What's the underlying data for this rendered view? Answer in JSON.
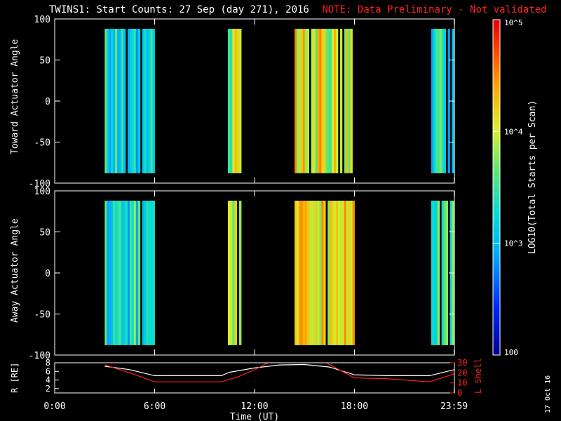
{
  "title": "TWINS1: Start Counts: 27 Sep (day 271), 2016",
  "note": "NOTE: Data Preliminary - Not validated",
  "date_stamp": "17 Oct 16",
  "colorbar": {
    "label": "LOG10(Total Starts per Scan)",
    "tick_labels": [
      "10^5",
      "10^4",
      "10^3",
      "100"
    ],
    "range": [
      100,
      100000
    ],
    "scale": "log"
  },
  "chart_data": [
    {
      "type": "heatmap",
      "name": "toward",
      "ylabel": "Toward Actuator Angle",
      "ylim": [
        -100,
        100
      ],
      "yticks": [
        100,
        50,
        0,
        -50,
        -100
      ],
      "xlim": [
        0,
        24
      ],
      "x_tick_labels": [],
      "angle_range": [
        -88,
        88
      ],
      "blocks": [
        {
          "start": 3.0,
          "end": 6.0,
          "level": 0.42
        },
        {
          "start": 10.4,
          "end": 11.2,
          "level": 0.62
        },
        {
          "start": 14.4,
          "end": 18.0,
          "level": 0.68
        },
        {
          "start": 22.6,
          "end": 23.98,
          "level": 0.45
        }
      ]
    },
    {
      "type": "heatmap",
      "name": "away",
      "ylabel": "Away Actuator Angle",
      "ylim": [
        -100,
        100
      ],
      "yticks": [
        100,
        50,
        0,
        -50,
        -100
      ],
      "xlim": [
        0,
        24
      ],
      "x_tick_labels": [],
      "angle_range": [
        -88,
        88
      ],
      "blocks": [
        {
          "start": 3.0,
          "end": 6.0,
          "level": 0.45
        },
        {
          "start": 10.4,
          "end": 11.2,
          "level": 0.7
        },
        {
          "start": 14.4,
          "end": 18.0,
          "level": 0.72
        },
        {
          "start": 22.6,
          "end": 23.98,
          "level": 0.55
        }
      ]
    },
    {
      "type": "line",
      "name": "orbit",
      "xlabel": "Time (UT)",
      "ylabel_left": "R [RE]",
      "ylabel_right": "L Shell",
      "ylim_left": [
        1,
        8
      ],
      "ylim_right": [
        0,
        30
      ],
      "yticks_left": [
        8,
        6,
        4,
        2
      ],
      "yticks_right": [
        30,
        20,
        10,
        0
      ],
      "xlim": [
        0,
        24
      ],
      "x_tick_labels": [
        "0:00",
        "6:00",
        "12:00",
        "18:00",
        "23:59"
      ],
      "x_tick_values": [
        0,
        6,
        12,
        18,
        23.98
      ],
      "series": [
        {
          "color": "#ffffff",
          "axis": "left",
          "x": [
            3.0,
            4.5,
            6.0,
            10.0,
            10.5,
            12.0,
            13.5,
            15.0,
            16.5,
            18.0,
            20.0,
            22.5,
            24.0
          ],
          "y": [
            7.2,
            6.4,
            5.0,
            5.0,
            5.8,
            6.8,
            7.5,
            7.6,
            7.0,
            5.2,
            5.0,
            5.0,
            6.4
          ]
        },
        {
          "color": "#ff2020",
          "axis": "right",
          "x": [
            3.0,
            4.5,
            6.0,
            10.0,
            11.0,
            12.0,
            12.8,
            15.5,
            16.3,
            18.0,
            20.0,
            22.5,
            24.0
          ],
          "y": [
            28,
            20,
            11,
            11,
            16,
            23,
            30,
            30,
            30,
            15,
            14,
            11,
            19
          ]
        }
      ]
    }
  ],
  "colors": {
    "background": "#000000",
    "axis": "#ffffff",
    "note": "#ff2020"
  }
}
